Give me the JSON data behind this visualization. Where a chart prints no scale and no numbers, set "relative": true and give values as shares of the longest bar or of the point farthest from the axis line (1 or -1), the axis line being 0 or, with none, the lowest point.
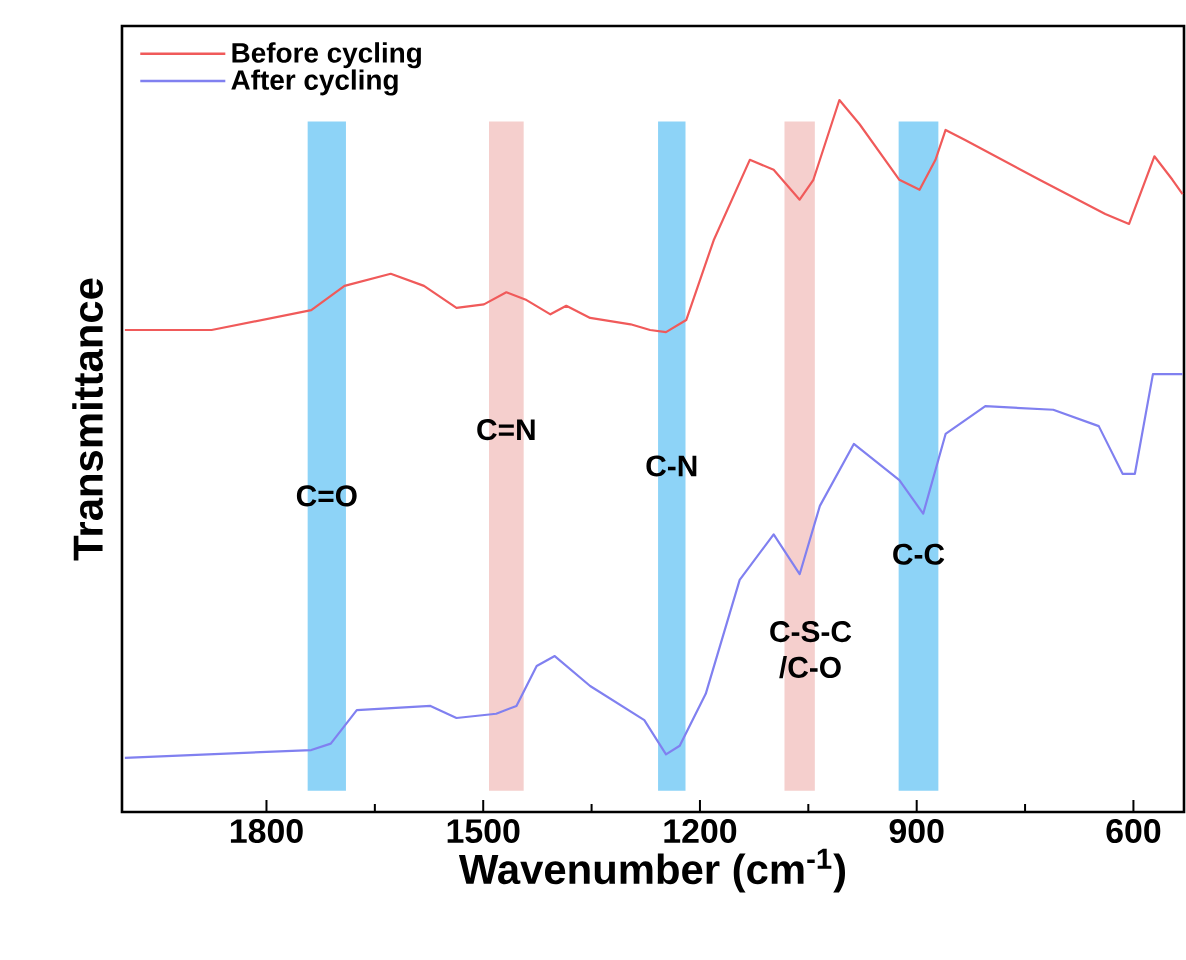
{
  "chart_data": {
    "type": "line",
    "relative": true,
    "xlabel": "Wavenumber (cm$^{-1}$)",
    "ylabel": "Transmittance",
    "xlim": [
      2000,
      530
    ],
    "xticks": [
      1800,
      1500,
      1200,
      900,
      600
    ],
    "legend": "top left",
    "grid": false,
    "series": [
      {
        "name": "Before cycling",
        "color": "#f05a5a",
        "x": [
          1996,
          1876,
          1738,
          1692,
          1628,
          1582,
          1537,
          1499,
          1468,
          1440,
          1407,
          1385,
          1352,
          1296,
          1269,
          1247,
          1219,
          1181,
          1131,
          1098,
          1062,
          1043,
          1007,
          979,
          924,
          896,
          874,
          860,
          833,
          730,
          639,
          606,
          571,
          546,
          532
        ],
        "values": [
          0.677,
          0.677,
          0.705,
          0.739,
          0.756,
          0.739,
          0.708,
          0.713,
          0.73,
          0.719,
          0.699,
          0.711,
          0.694,
          0.685,
          0.677,
          0.674,
          0.691,
          0.803,
          0.916,
          0.902,
          0.86,
          0.888,
          1.0,
          0.966,
          0.888,
          0.874,
          0.916,
          0.958,
          0.944,
          0.888,
          0.84,
          0.826,
          0.921,
          0.888,
          0.868
        ]
      },
      {
        "name": "After cycling",
        "color": "#8080f0",
        "x": [
          1996,
          1738,
          1711,
          1675,
          1573,
          1537,
          1482,
          1454,
          1426,
          1401,
          1352,
          1277,
          1247,
          1228,
          1192,
          1145,
          1098,
          1062,
          1034,
          987,
          924,
          891,
          860,
          805,
          711,
          648,
          615,
          598,
          573,
          532
        ],
        "values": [
          0.076,
          0.087,
          0.096,
          0.143,
          0.149,
          0.132,
          0.138,
          0.149,
          0.205,
          0.219,
          0.177,
          0.129,
          0.081,
          0.093,
          0.166,
          0.326,
          0.39,
          0.334,
          0.43,
          0.517,
          0.466,
          0.419,
          0.531,
          0.57,
          0.565,
          0.542,
          0.475,
          0.475,
          0.615,
          0.615
        ]
      }
    ],
    "bands": [
      {
        "axis": "x",
        "from": 1743,
        "to": 1690,
        "color": "#8dd3f7",
        "label": "C=O"
      },
      {
        "axis": "x",
        "from": 1492,
        "to": 1444,
        "color": "#f5cfcd",
        "label": "C=N"
      },
      {
        "axis": "x",
        "from": 1258,
        "to": 1220,
        "color": "#8dd3f7",
        "label": "C-N"
      },
      {
        "axis": "x",
        "from": 1083,
        "to": 1041,
        "color": "#f5cfcd",
        "label": "C-S-C /C-O"
      },
      {
        "axis": "x",
        "from": 925,
        "to": 870,
        "color": "#8dd3f7",
        "label": "C-C"
      }
    ]
  }
}
